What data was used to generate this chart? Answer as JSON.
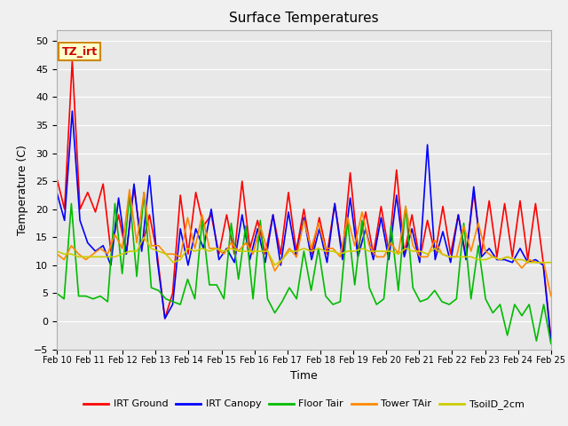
{
  "title": "Surface Temperatures",
  "xlabel": "Time",
  "ylabel": "Temperature (C)",
  "ylim": [
    -5,
    52
  ],
  "xlim": [
    0,
    15
  ],
  "x_tick_labels": [
    "Feb 10",
    "Feb 11",
    "Feb 12",
    "Feb 13",
    "Feb 14",
    "Feb 15",
    "Feb 16",
    "Feb 17",
    "Feb 18",
    "Feb 19",
    "Feb 20",
    "Feb 21",
    "Feb 22",
    "Feb 23",
    "Feb 24",
    "Feb 25"
  ],
  "annotation_text": "TZ_irt",
  "annotation_color": "#cc0000",
  "annotation_bg": "#ffffcc",
  "annotation_border": "#cc8800",
  "fig_bg": "#f0f0f0",
  "plot_bg": "#e8e8e8",
  "grid_color": "#ffffff",
  "legend_labels": [
    "IRT Ground",
    "IRT Canopy",
    "Floor Tair",
    "Tower TAir",
    "TsoilD_2cm"
  ],
  "legend_colors": [
    "#ff0000",
    "#0000ff",
    "#00bb00",
    "#ff8800",
    "#cccc00"
  ],
  "irt_ground": [
    25.5,
    20.0,
    46.5,
    20.0,
    23.0,
    19.5,
    24.5,
    12.5,
    19.0,
    12.0,
    24.0,
    13.0,
    19.0,
    12.0,
    0.5,
    5.0,
    22.5,
    12.0,
    23.0,
    17.0,
    19.0,
    12.0,
    19.0,
    12.0,
    25.0,
    13.0,
    18.0,
    12.0,
    19.0,
    12.0,
    23.0,
    12.5,
    20.0,
    12.0,
    18.5,
    12.0,
    21.0,
    12.0,
    26.5,
    12.5,
    19.5,
    12.0,
    20.5,
    12.5,
    27.0,
    12.0,
    19.0,
    11.0,
    18.0,
    12.0,
    20.5,
    12.0,
    19.0,
    11.5,
    23.0,
    12.0,
    21.5,
    11.5,
    21.0,
    11.5,
    21.5,
    11.0,
    21.0,
    10.5,
    -3.0
  ],
  "irt_canopy": [
    23.0,
    18.0,
    37.5,
    18.0,
    14.0,
    12.5,
    13.5,
    10.0,
    22.0,
    12.0,
    24.5,
    12.5,
    26.0,
    11.0,
    0.5,
    3.0,
    16.5,
    10.0,
    16.5,
    13.0,
    20.0,
    11.0,
    13.0,
    10.5,
    19.0,
    11.0,
    16.5,
    10.5,
    19.0,
    10.0,
    19.5,
    11.5,
    18.5,
    11.0,
    16.5,
    10.5,
    21.0,
    11.0,
    22.0,
    11.5,
    16.5,
    11.0,
    18.5,
    11.0,
    22.5,
    11.5,
    16.5,
    10.5,
    31.5,
    11.0,
    16.0,
    10.5,
    19.0,
    11.0,
    24.0,
    11.5,
    13.0,
    11.0,
    11.0,
    10.5,
    13.0,
    10.5,
    11.0,
    10.0,
    -3.5
  ],
  "floor_tair": [
    5.0,
    4.0,
    21.0,
    4.5,
    4.5,
    4.0,
    4.5,
    3.5,
    21.0,
    8.5,
    22.5,
    8.0,
    23.0,
    6.0,
    5.5,
    4.0,
    3.5,
    3.0,
    7.5,
    4.0,
    18.0,
    6.5,
    6.5,
    4.0,
    17.5,
    7.5,
    17.0,
    4.0,
    18.0,
    4.0,
    1.5,
    3.5,
    6.0,
    4.0,
    12.5,
    5.5,
    13.0,
    4.5,
    3.0,
    3.5,
    18.0,
    6.5,
    18.0,
    6.0,
    3.0,
    4.0,
    17.0,
    5.5,
    20.5,
    6.0,
    3.5,
    4.0,
    5.5,
    3.5,
    3.0,
    4.0,
    17.5,
    4.0,
    13.5,
    4.0,
    1.5,
    3.0,
    -2.5,
    3.0,
    1.0,
    3.0,
    -3.5,
    3.0,
    -4.0
  ],
  "tower_tair": [
    12.0,
    11.0,
    13.5,
    12.0,
    11.0,
    12.0,
    13.0,
    12.0,
    15.5,
    13.0,
    23.5,
    14.0,
    23.0,
    13.5,
    13.5,
    12.0,
    12.0,
    11.5,
    18.5,
    13.0,
    19.0,
    13.0,
    13.0,
    12.0,
    14.0,
    12.5,
    14.0,
    12.0,
    17.0,
    12.5,
    9.0,
    11.0,
    13.0,
    11.5,
    18.0,
    13.0,
    17.5,
    13.0,
    13.0,
    11.5,
    18.5,
    13.5,
    19.5,
    13.5,
    11.5,
    11.5,
    14.0,
    12.0,
    20.5,
    13.5,
    11.5,
    11.5,
    14.5,
    12.0,
    11.5,
    11.5,
    17.0,
    12.5,
    17.5,
    12.5,
    11.5,
    11.0,
    11.5,
    11.0,
    9.5,
    11.0,
    10.5,
    10.5,
    4.5
  ],
  "tsoild_2cm": [
    12.5,
    12.0,
    12.0,
    11.5,
    11.5,
    11.5,
    11.5,
    11.5,
    11.5,
    12.0,
    12.5,
    12.5,
    15.0,
    13.0,
    12.5,
    12.0,
    10.5,
    11.0,
    13.0,
    12.5,
    13.0,
    12.5,
    13.0,
    12.5,
    13.0,
    12.5,
    12.5,
    12.5,
    12.5,
    12.5,
    10.0,
    11.0,
    12.5,
    12.5,
    13.0,
    12.5,
    13.0,
    12.5,
    12.5,
    12.0,
    12.5,
    12.5,
    13.0,
    12.5,
    12.5,
    12.5,
    12.5,
    12.0,
    13.0,
    12.5,
    12.5,
    12.0,
    13.0,
    12.0,
    11.5,
    11.5,
    11.5,
    11.5,
    11.0,
    11.0,
    11.5,
    11.0,
    11.5,
    11.0,
    11.0,
    10.5,
    10.5,
    10.5,
    10.5
  ]
}
